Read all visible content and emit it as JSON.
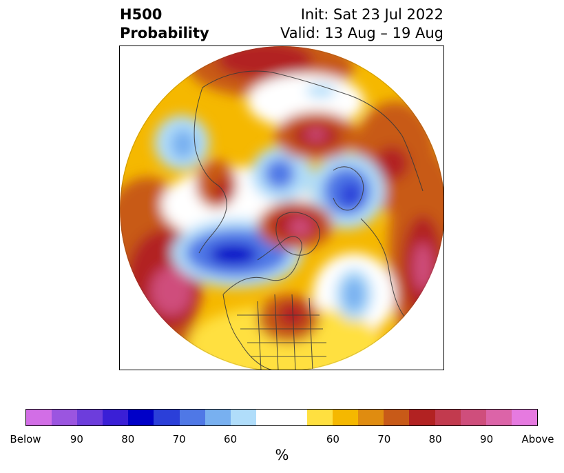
{
  "header": {
    "title_line1": "H500",
    "title_line2": "Probability",
    "init": "Init: Sat 23 Jul 2022",
    "valid": "Valid: 13 Aug – 19 Aug"
  },
  "map": {
    "projection": "north-polar-stereographic",
    "background": "#ffffff",
    "coastline_color": "#3a3a3a"
  },
  "colorbar": {
    "colors": [
      "#d26ee6",
      "#9b55e0",
      "#6d3ddc",
      "#3a1fd6",
      "#0000c8",
      "#2b3fd9",
      "#4f78e6",
      "#78b0f0",
      "#b0ddfa",
      "#ffffff",
      "#ffffff",
      "#ffe040",
      "#f5b800",
      "#e08c10",
      "#c85a18",
      "#b22222",
      "#c23a4e",
      "#cf4e7c",
      "#dc64a8",
      "#e67ae0"
    ],
    "tick_labels": [
      "Below",
      "90",
      "80",
      "70",
      "60",
      "60",
      "70",
      "80",
      "90",
      "Above"
    ],
    "unit": "%"
  }
}
